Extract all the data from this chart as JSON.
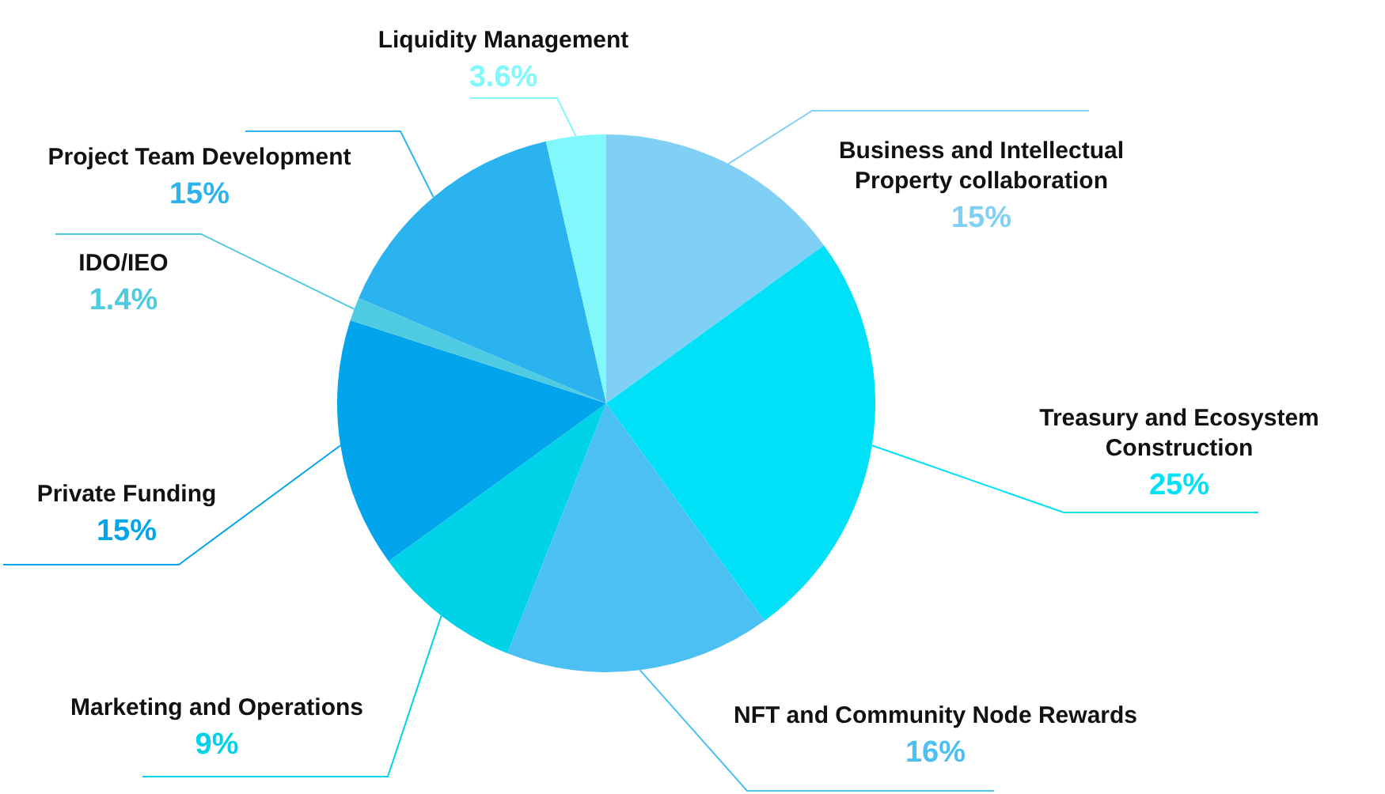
{
  "chart_data": {
    "type": "pie",
    "categories": [
      "Business and Intellectual Property collaboration",
      "Treasury and Ecosystem Construction",
      "NFT and Community Node Rewards",
      "Marketing and Operations",
      "Private Funding",
      "IDO/IEO",
      "Project Team Development",
      "Liquidity Management"
    ],
    "values": [
      15,
      25,
      16,
      9,
      15,
      1.4,
      15,
      3.6
    ],
    "colors": [
      "#80d0f6",
      "#00e1f8",
      "#4cbff3",
      "#00d2e8",
      "#02a5ec",
      "#4ecbe0",
      "#2bb3ef",
      "#80f8fc"
    ],
    "value_labels": [
      "15%",
      "25%",
      "16%",
      "9%",
      "15%",
      "1.4%",
      "15%",
      "3.6%"
    ]
  }
}
